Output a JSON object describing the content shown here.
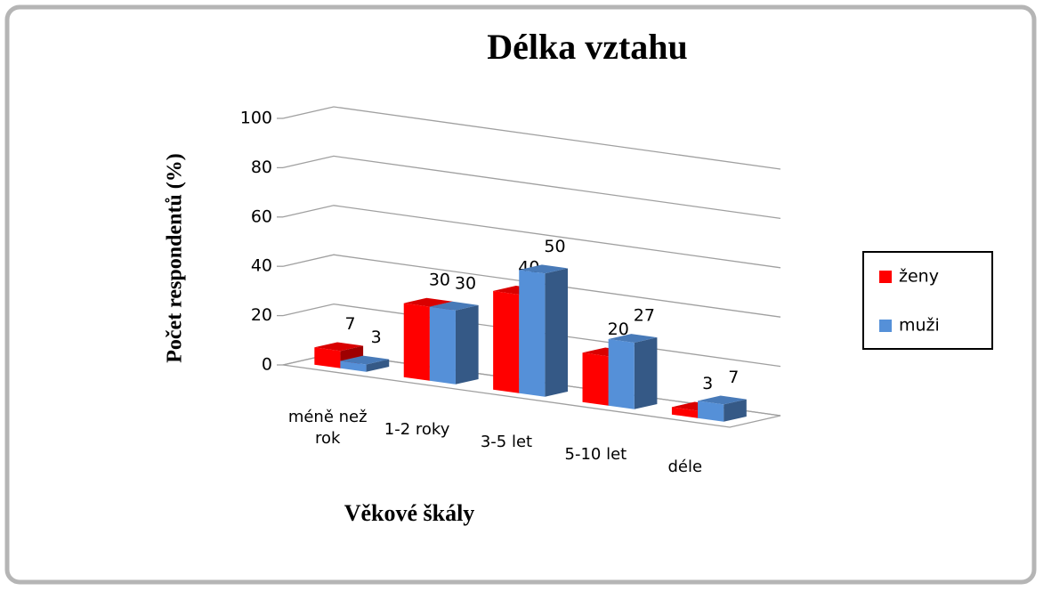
{
  "chart_data": {
    "type": "bar3d",
    "title": "Délka vztahu",
    "y_label": "Počet respondentů (%)",
    "x_label": "Věkové škály",
    "categories": [
      "méně než rok",
      "1-2 roky",
      "3-5 let",
      "5-10 let",
      "déle"
    ],
    "series": [
      {
        "name": "ženy",
        "color": "#ff0000",
        "values": [
          7,
          30,
          40,
          20,
          3
        ]
      },
      {
        "name": "muži",
        "color": "#5590d8",
        "values": [
          3,
          30,
          50,
          27,
          7
        ]
      }
    ],
    "ylim": [
      0,
      100
    ],
    "yticks": [
      0,
      20,
      40,
      60,
      80,
      100
    ],
    "grid": true,
    "legend": "right"
  }
}
